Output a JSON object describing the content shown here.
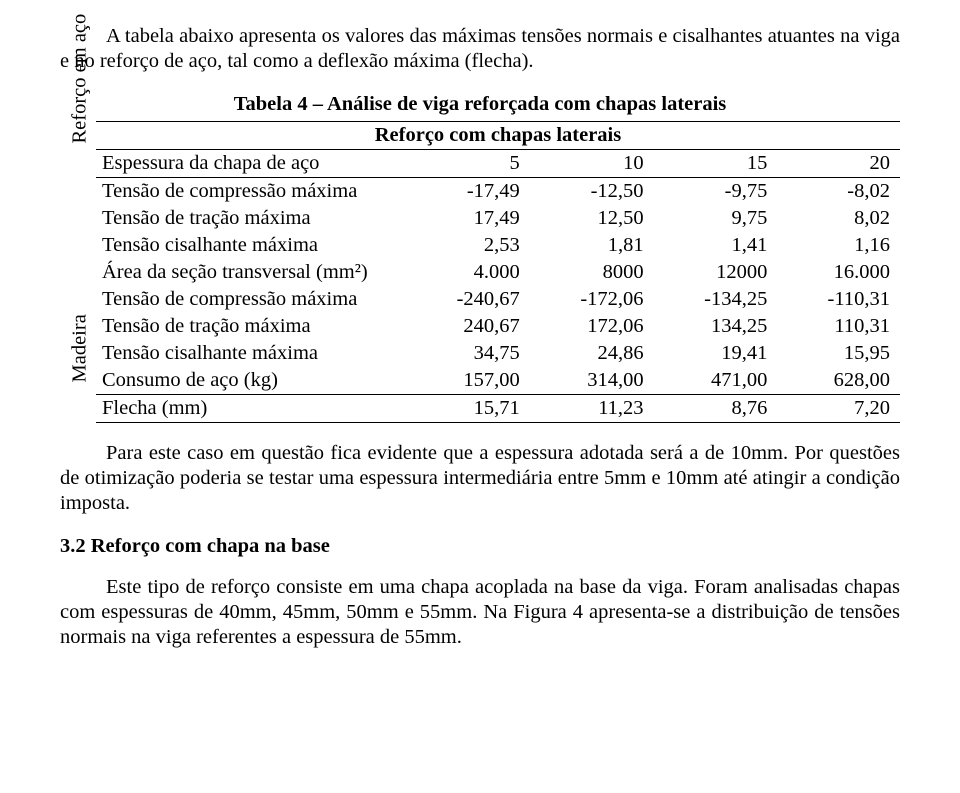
{
  "intro": "A tabela abaixo apresenta os valores das máximas tensões normais e cisalhantes atuantes na viga e no reforço de aço, tal como a deflexão máxima (flecha).",
  "caption": "Tabela 4 – Análise de viga reforçada com chapas laterais",
  "subhead": "Reforço com chapas laterais",
  "side_top": "Madeira",
  "side_bot": "Reforço em aço",
  "cols": {
    "c1": "5",
    "c2": "10",
    "c3": "15",
    "c4": "20"
  },
  "rows": {
    "r0": {
      "l": "Espessura da chapa de aço"
    },
    "r1": {
      "l": "Tensão de compressão máxima",
      "c1": "-17,49",
      "c2": "-12,50",
      "c3": "-9,75",
      "c4": "-8,02"
    },
    "r2": {
      "l": "Tensão de tração máxima",
      "c1": "17,49",
      "c2": "12,50",
      "c3": "9,75",
      "c4": "8,02"
    },
    "r3": {
      "l": "Tensão cisalhante máxima",
      "c1": "2,53",
      "c2": "1,81",
      "c3": "1,41",
      "c4": "1,16"
    },
    "r4": {
      "l": "Área da seção transversal (mm²)",
      "c1": "4.000",
      "c2": "8000",
      "c3": "12000",
      "c4": "16.000"
    },
    "r5": {
      "l": "Tensão de compressão máxima",
      "c1": "-240,67",
      "c2": "-172,06",
      "c3": "-134,25",
      "c4": "-110,31"
    },
    "r6": {
      "l": "Tensão de tração máxima",
      "c1": "240,67",
      "c2": "172,06",
      "c3": "134,25",
      "c4": "110,31"
    },
    "r7": {
      "l": "Tensão cisalhante máxima",
      "c1": "34,75",
      "c2": "24,86",
      "c3": "19,41",
      "c4": "15,95"
    },
    "r8": {
      "l": "Consumo de aço (kg)",
      "c1": "157,00",
      "c2": "314,00",
      "c3": "471,00",
      "c4": "628,00"
    },
    "r9": {
      "l": "Flecha (mm)",
      "c1": "15,71",
      "c2": "11,23",
      "c3": "8,76",
      "c4": "7,20"
    }
  },
  "para2": "Para este caso em questão fica evidente que a espessura adotada será a de 10mm. Por questões de otimização poderia se testar uma espessura intermediária entre 5mm e 10mm até atingir a condição imposta.",
  "section": "3.2 Reforço com chapa na base",
  "para3": "Este tipo de reforço consiste em uma chapa acoplada na base da viga. Foram analisadas chapas com espessuras de 40mm, 45mm, 50mm e 55mm. Na Figura 4 apresenta-se a distribuição de tensões normais na viga referentes a espessura de 55mm."
}
